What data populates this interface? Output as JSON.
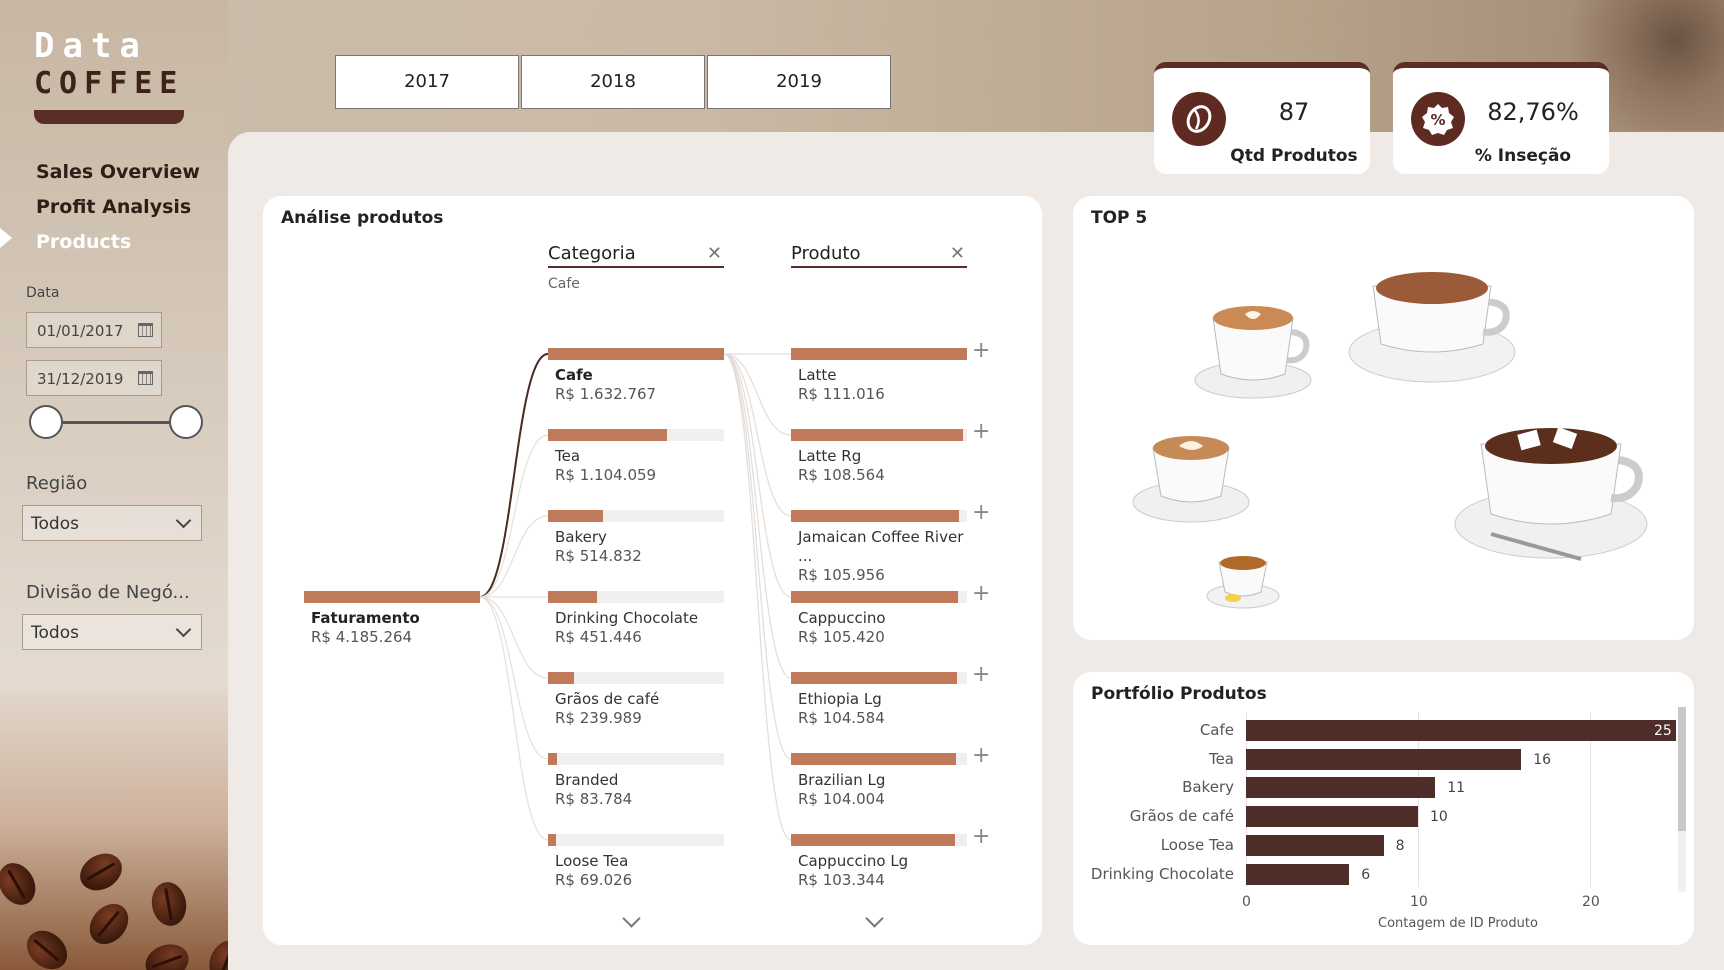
{
  "logo": {
    "line1": "Data",
    "line2": "COFFEE"
  },
  "nav": {
    "items": [
      "Sales Overview",
      "Profit Analysis",
      "Products"
    ],
    "active": "Products"
  },
  "filters": {
    "date_label": "Data",
    "date_start": "01/01/2017",
    "date_end": "31/12/2019",
    "region_label": "Região",
    "region_value": "Todos",
    "division_label": "Divisão de Negó...",
    "division_value": "Todos"
  },
  "years": [
    "2017",
    "2018",
    "2019"
  ],
  "kpis": [
    {
      "value": "87",
      "label": "Qtd Produtos",
      "icon": "coffee-bean-icon"
    },
    {
      "value": "82,76%",
      "label": "% Inseção",
      "icon": "percent-badge-icon"
    }
  ],
  "decomposition": {
    "title": "Análise produtos",
    "root": {
      "label": "Faturamento",
      "value": "R$ 4.185.264"
    },
    "col1": {
      "header": "Categoria",
      "subtitle": "Cafe"
    },
    "col2": {
      "header": "Produto"
    },
    "categories": [
      {
        "label": "Cafe",
        "value": "R$ 1.632.767",
        "amount": 1632767
      },
      {
        "label": "Tea",
        "value": "R$ 1.104.059",
        "amount": 1104059
      },
      {
        "label": "Bakery",
        "value": "R$ 514.832",
        "amount": 514832
      },
      {
        "label": "Drinking Chocolate",
        "value": "R$ 451.446",
        "amount": 451446
      },
      {
        "label": "Grãos de café",
        "value": "R$ 239.989",
        "amount": 239989
      },
      {
        "label": "Branded",
        "value": "R$ 83.784",
        "amount": 83784
      },
      {
        "label": "Loose Tea",
        "value": "R$ 69.026",
        "amount": 69026
      }
    ],
    "products": [
      {
        "label": "Latte",
        "value": "R$ 111.016",
        "amount": 111016
      },
      {
        "label": "Latte Rg",
        "value": "R$ 108.564",
        "amount": 108564
      },
      {
        "label": "Jamaican Coffee River ...",
        "value": "R$ 105.956",
        "amount": 105956
      },
      {
        "label": "Cappuccino",
        "value": "R$ 105.420",
        "amount": 105420
      },
      {
        "label": "Ethiopia Lg",
        "value": "R$ 104.584",
        "amount": 104584
      },
      {
        "label": "Brazilian Lg",
        "value": "R$ 104.004",
        "amount": 104004
      },
      {
        "label": "Cappuccino Lg",
        "value": "R$ 103.344",
        "amount": 103344
      }
    ]
  },
  "top5": {
    "title": "TOP 5"
  },
  "portfolio": {
    "title": "Portfólio Produtos"
  },
  "chart_data": {
    "type": "bar",
    "orientation": "horizontal",
    "title": "Portfólio Produtos",
    "categories": [
      "Cafe",
      "Tea",
      "Bakery",
      "Grãos de café",
      "Loose Tea",
      "Drinking Chocolate"
    ],
    "values": [
      25,
      16,
      11,
      10,
      8,
      6
    ],
    "xlabel": "Contagem de ID Produto",
    "ylabel": "",
    "xlim": [
      0,
      25
    ],
    "xticks": [
      "0",
      "10",
      "20"
    ],
    "grid": true,
    "bar_color": "#4f2d28"
  },
  "colors": {
    "accent": "#5a2e26",
    "bar": "#c07a5a",
    "panel": "#efeae5"
  }
}
